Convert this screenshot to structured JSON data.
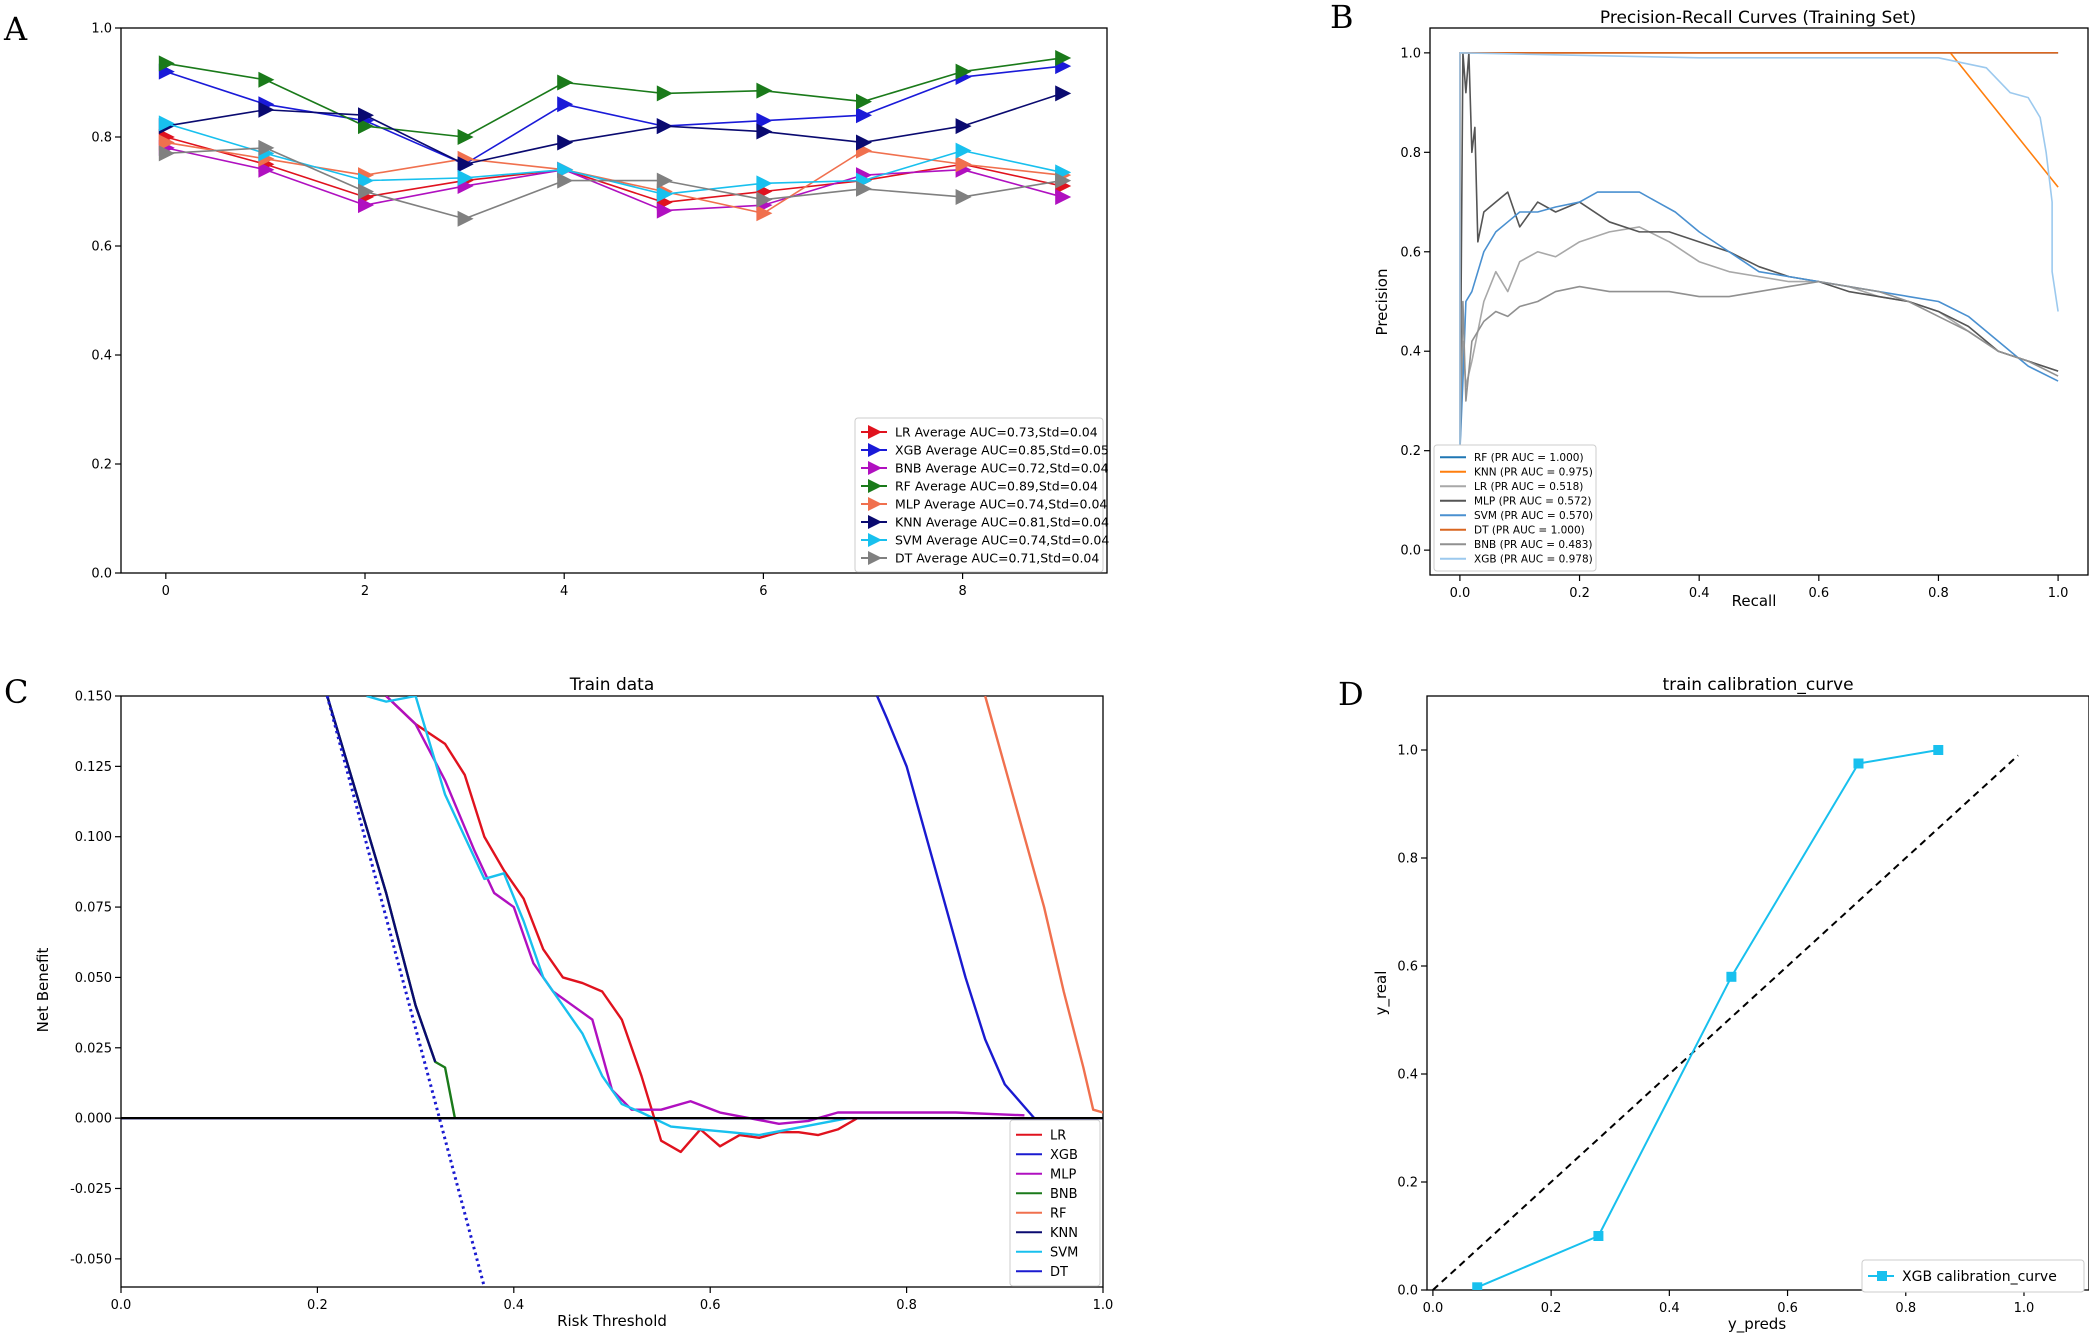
{
  "panel_letters": [
    "A",
    "B",
    "C",
    "D"
  ],
  "chart_data": [
    {
      "id": "A",
      "type": "line",
      "title": "",
      "xlabel": "",
      "ylabel": "",
      "xlim": [
        -0.45,
        9.45
      ],
      "ylim": [
        0.0,
        1.0
      ],
      "xticks": [
        0,
        2,
        4,
        6,
        8
      ],
      "yticks": [
        0.0,
        0.2,
        0.4,
        0.6,
        0.8,
        1.0
      ],
      "xtick_labels": [
        "0",
        "2",
        "4",
        "6",
        "8"
      ],
      "ytick_labels": [
        "0.0",
        "0.2",
        "0.4",
        "0.6",
        "0.8",
        "1.0"
      ],
      "x": [
        0,
        1,
        2,
        3,
        4,
        5,
        6,
        7,
        8,
        9
      ],
      "legend_position": "lower right",
      "series": [
        {
          "name": "LR",
          "label": "LR Average AUC=0.73,Std=0.04",
          "color": "#e0121e",
          "values": [
            0.8,
            0.75,
            0.69,
            0.72,
            0.74,
            0.68,
            0.7,
            0.72,
            0.75,
            0.71
          ]
        },
        {
          "name": "XGB",
          "label": "XGB Average AUC=0.85,Std=0.05",
          "color": "#1a1ad8",
          "values": [
            0.92,
            0.86,
            0.83,
            0.75,
            0.86,
            0.82,
            0.83,
            0.84,
            0.91,
            0.93
          ]
        },
        {
          "name": "BNB",
          "label": "BNB Average AUC=0.72,Std=0.04",
          "color": "#b010c0",
          "values": [
            0.78,
            0.74,
            0.675,
            0.71,
            0.74,
            0.665,
            0.675,
            0.73,
            0.74,
            0.69
          ]
        },
        {
          "name": "RF",
          "label": "RF Average AUC=0.89,Std=0.04",
          "color": "#1a7a1a",
          "values": [
            0.935,
            0.905,
            0.82,
            0.8,
            0.9,
            0.88,
            0.885,
            0.865,
            0.92,
            0.945
          ]
        },
        {
          "name": "MLP",
          "label": "MLP Average AUC=0.74,Std=0.04",
          "color": "#f0704e",
          "values": [
            0.79,
            0.76,
            0.73,
            0.76,
            0.74,
            0.7,
            0.66,
            0.775,
            0.75,
            0.73
          ]
        },
        {
          "name": "KNN",
          "label": "KNN Average AUC=0.81,Std=0.04",
          "color": "#0a0a70",
          "values": [
            0.82,
            0.85,
            0.84,
            0.75,
            0.79,
            0.82,
            0.81,
            0.79,
            0.82,
            0.88
          ]
        },
        {
          "name": "SVM",
          "label": "SVM Average AUC=0.74,Std=0.04",
          "color": "#18c0ee",
          "values": [
            0.825,
            0.77,
            0.72,
            0.725,
            0.74,
            0.695,
            0.715,
            0.72,
            0.775,
            0.735
          ]
        },
        {
          "name": "DT",
          "label": "DT Average AUC=0.71,Std=0.04",
          "color": "#808080",
          "values": [
            0.77,
            0.78,
            0.7,
            0.65,
            0.72,
            0.72,
            0.685,
            0.705,
            0.69,
            0.72
          ]
        }
      ]
    },
    {
      "id": "B",
      "type": "line",
      "title": "Precision-Recall Curves (Training Set)",
      "xlabel": "Recall",
      "ylabel": "Precision",
      "xlim": [
        -0.05,
        1.05
      ],
      "ylim": [
        -0.05,
        1.05
      ],
      "xticks": [
        0.0,
        0.2,
        0.4,
        0.6,
        0.8,
        1.0
      ],
      "yticks": [
        0.0,
        0.2,
        0.4,
        0.6,
        0.8,
        1.0
      ],
      "xtick_labels": [
        "0.0",
        "0.2",
        "0.4",
        "0.6",
        "0.8",
        "1.0"
      ],
      "ytick_labels": [
        "0.0",
        "0.2",
        "0.4",
        "0.6",
        "0.8",
        "1.0"
      ],
      "legend_position": "lower left",
      "series": [
        {
          "name": "RF",
          "label": "RF (PR AUC = 1.000)",
          "color": "#1f77b4",
          "x": [
            0.0,
            0.0,
            1.0
          ],
          "y": [
            0.2,
            1.0,
            1.0
          ]
        },
        {
          "name": "KNN",
          "label": "KNN (PR AUC = 0.975)",
          "color": "#ff7f0e",
          "x": [
            0.0,
            0.0,
            0.82,
            1.0
          ],
          "y": [
            0.2,
            1.0,
            1.0,
            0.73
          ]
        },
        {
          "name": "LR",
          "label": "LR (PR AUC = 0.518)",
          "color": "#a8a8a8",
          "x": [
            0.0,
            0.005,
            0.01,
            0.02,
            0.04,
            0.06,
            0.08,
            0.1,
            0.13,
            0.16,
            0.2,
            0.25,
            0.3,
            0.35,
            0.4,
            0.45,
            0.5,
            0.55,
            0.6,
            0.65,
            0.7,
            0.75,
            0.8,
            0.85,
            0.9,
            0.95,
            1.0
          ],
          "y": [
            0.2,
            0.42,
            0.33,
            0.38,
            0.5,
            0.56,
            0.52,
            0.58,
            0.6,
            0.59,
            0.62,
            0.64,
            0.65,
            0.62,
            0.58,
            0.56,
            0.55,
            0.54,
            0.54,
            0.53,
            0.51,
            0.5,
            0.48,
            0.44,
            0.4,
            0.38,
            0.36
          ]
        },
        {
          "name": "MLP",
          "label": "MLP (PR AUC = 0.572)",
          "color": "#555555",
          "x": [
            0.0,
            0.005,
            0.01,
            0.015,
            0.02,
            0.025,
            0.03,
            0.04,
            0.06,
            0.08,
            0.1,
            0.13,
            0.16,
            0.2,
            0.25,
            0.3,
            0.35,
            0.4,
            0.45,
            0.5,
            0.55,
            0.6,
            0.65,
            0.7,
            0.75,
            0.8,
            0.85,
            0.9,
            0.95,
            1.0
          ],
          "y": [
            0.2,
            1.0,
            0.92,
            1.0,
            0.8,
            0.85,
            0.62,
            0.68,
            0.7,
            0.72,
            0.65,
            0.7,
            0.68,
            0.7,
            0.66,
            0.64,
            0.64,
            0.62,
            0.6,
            0.57,
            0.55,
            0.54,
            0.52,
            0.51,
            0.5,
            0.48,
            0.45,
            0.4,
            0.38,
            0.36
          ]
        },
        {
          "name": "SVM",
          "label": "SVM (PR AUC = 0.570)",
          "color": "#4a90d0",
          "x": [
            0.0,
            0.005,
            0.01,
            0.02,
            0.04,
            0.06,
            0.08,
            0.1,
            0.13,
            0.16,
            0.2,
            0.23,
            0.26,
            0.3,
            0.33,
            0.36,
            0.4,
            0.45,
            0.5,
            0.55,
            0.6,
            0.65,
            0.7,
            0.75,
            0.8,
            0.85,
            0.9,
            0.95,
            1.0
          ],
          "y": [
            0.2,
            0.34,
            0.5,
            0.52,
            0.6,
            0.64,
            0.66,
            0.68,
            0.68,
            0.69,
            0.7,
            0.72,
            0.72,
            0.72,
            0.7,
            0.68,
            0.64,
            0.6,
            0.56,
            0.55,
            0.54,
            0.53,
            0.52,
            0.51,
            0.5,
            0.47,
            0.42,
            0.37,
            0.34
          ]
        },
        {
          "name": "DT",
          "label": "DT (PR AUC = 1.000)",
          "color": "#d96620",
          "x": [
            0.0,
            0.0,
            0.42,
            1.0
          ],
          "y": [
            0.2,
            1.0,
            1.0,
            1.0
          ]
        },
        {
          "name": "BNB",
          "label": "BNB (PR AUC = 0.483)",
          "color": "#909090",
          "x": [
            0.0,
            0.005,
            0.01,
            0.02,
            0.04,
            0.06,
            0.08,
            0.1,
            0.13,
            0.16,
            0.2,
            0.25,
            0.3,
            0.35,
            0.4,
            0.45,
            0.5,
            0.55,
            0.6,
            0.65,
            0.7,
            0.75,
            0.8,
            0.85,
            0.9,
            0.95,
            1.0
          ],
          "y": [
            0.2,
            0.5,
            0.3,
            0.42,
            0.46,
            0.48,
            0.47,
            0.49,
            0.5,
            0.52,
            0.53,
            0.52,
            0.52,
            0.52,
            0.51,
            0.51,
            0.52,
            0.53,
            0.54,
            0.53,
            0.52,
            0.5,
            0.47,
            0.44,
            0.4,
            0.38,
            0.35
          ]
        },
        {
          "name": "XGB",
          "label": "XGB (PR AUC = 0.978)",
          "color": "#9cc9ee",
          "x": [
            0.0,
            0.0,
            0.4,
            0.8,
            0.88,
            0.92,
            0.95,
            0.97,
            0.98,
            0.99,
            0.99,
            1.0
          ],
          "y": [
            0.2,
            1.0,
            0.99,
            0.99,
            0.97,
            0.92,
            0.91,
            0.87,
            0.8,
            0.7,
            0.56,
            0.48
          ]
        }
      ]
    },
    {
      "id": "C",
      "type": "line",
      "title": "Train data",
      "xlabel": "Risk Threshold",
      "ylabel": "Net Benefit",
      "xlim": [
        0.0,
        1.0
      ],
      "ylim": [
        -0.06,
        0.15
      ],
      "xticks": [
        0.0,
        0.2,
        0.4,
        0.6,
        0.8,
        1.0
      ],
      "yticks": [
        -0.05,
        -0.025,
        0.0,
        0.025,
        0.05,
        0.075,
        0.1,
        0.125,
        0.15
      ],
      "xtick_labels": [
        "0.0",
        "0.2",
        "0.4",
        "0.6",
        "0.8",
        "1.0"
      ],
      "ytick_labels": [
        "-0.050",
        "-0.025",
        "0.000",
        "0.025",
        "0.050",
        "0.075",
        "0.100",
        "0.125",
        "0.150"
      ],
      "legend_position": "lower right",
      "series": [
        {
          "name": "LR",
          "label": "LR",
          "color": "#e0121e",
          "x": [
            0.27,
            0.3,
            0.33,
            0.35,
            0.37,
            0.39,
            0.41,
            0.43,
            0.45,
            0.47,
            0.49,
            0.51,
            0.53,
            0.55,
            0.57,
            0.59,
            0.61,
            0.63,
            0.65,
            0.67,
            0.69,
            0.71,
            0.73,
            0.75,
            0.77
          ],
          "y": [
            0.15,
            0.14,
            0.133,
            0.122,
            0.1,
            0.088,
            0.078,
            0.06,
            0.05,
            0.048,
            0.045,
            0.035,
            0.015,
            -0.008,
            -0.012,
            -0.004,
            -0.01,
            -0.006,
            -0.007,
            -0.005,
            -0.005,
            -0.006,
            -0.004,
            0.0,
            0.0
          ]
        },
        {
          "name": "XGB",
          "label": "XGB",
          "color": "#1a1ad0",
          "x": [
            0.77,
            0.78,
            0.8,
            0.82,
            0.84,
            0.86,
            0.88,
            0.9,
            0.92,
            0.93
          ],
          "y": [
            0.15,
            0.142,
            0.125,
            0.1,
            0.075,
            0.05,
            0.028,
            0.012,
            0.004,
            0.0
          ]
        },
        {
          "name": "MLP",
          "label": "MLP",
          "color": "#b010c0",
          "x": [
            0.27,
            0.3,
            0.33,
            0.36,
            0.38,
            0.4,
            0.42,
            0.44,
            0.46,
            0.48,
            0.5,
            0.52,
            0.55,
            0.58,
            0.61,
            0.64,
            0.67,
            0.7,
            0.73,
            0.76,
            0.8,
            0.85,
            0.92
          ],
          "y": [
            0.15,
            0.14,
            0.12,
            0.095,
            0.08,
            0.075,
            0.055,
            0.045,
            0.04,
            0.035,
            0.01,
            0.003,
            0.003,
            0.006,
            0.002,
            0.0,
            -0.002,
            -0.001,
            0.002,
            0.002,
            0.002,
            0.002,
            0.001
          ]
        },
        {
          "name": "BNB",
          "label": "BNB",
          "color": "#1a7a1a",
          "x": [
            0.21,
            0.24,
            0.27,
            0.3,
            0.32,
            0.33,
            0.34
          ],
          "y": [
            0.15,
            0.115,
            0.08,
            0.04,
            0.02,
            0.018,
            0.0
          ]
        },
        {
          "name": "RF",
          "label": "RF",
          "color": "#f0704e",
          "x": [
            0.88,
            0.9,
            0.92,
            0.94,
            0.96,
            0.98,
            0.99,
            1.0
          ],
          "y": [
            0.15,
            0.125,
            0.1,
            0.075,
            0.045,
            0.018,
            0.003,
            0.002
          ]
        },
        {
          "name": "KNN",
          "label": "KNN",
          "color": "#0a0a70",
          "x": [
            0.21,
            0.24,
            0.27,
            0.3,
            0.32
          ],
          "y": [
            0.15,
            0.115,
            0.08,
            0.04,
            0.02
          ]
        },
        {
          "name": "SVM",
          "label": "SVM",
          "color": "#18c0ee",
          "x": [
            0.25,
            0.27,
            0.3,
            0.33,
            0.35,
            0.37,
            0.39,
            0.41,
            0.43,
            0.45,
            0.47,
            0.49,
            0.51,
            0.53,
            0.56,
            0.59,
            0.62,
            0.65,
            0.68,
            0.71,
            0.74
          ],
          "y": [
            0.15,
            0.148,
            0.15,
            0.115,
            0.1,
            0.085,
            0.087,
            0.07,
            0.05,
            0.04,
            0.03,
            0.015,
            0.005,
            0.002,
            -0.003,
            -0.004,
            -0.005,
            -0.006,
            -0.004,
            -0.002,
            0.0
          ]
        },
        {
          "name": "DT",
          "label": "DT",
          "color": "#1a1ad0",
          "x": [
            0.0,
            1.0
          ],
          "y": [
            0.0,
            0.0
          ]
        }
      ],
      "extra_lines": [
        {
          "name": "treat-all",
          "color": "#1a1ad0",
          "style": "dotted",
          "x": [
            0.21,
            0.37
          ],
          "y": [
            0.15,
            -0.06
          ]
        },
        {
          "name": "treat-none",
          "color": "#000000",
          "style": "solid",
          "x": [
            0.0,
            1.0
          ],
          "y": [
            0.0,
            0.0
          ]
        }
      ]
    },
    {
      "id": "D",
      "type": "line",
      "title": "train calibration_curve",
      "xlabel": "y_preds",
      "ylabel": "y_real",
      "xlim": [
        -0.01,
        1.11
      ],
      "ylim": [
        0.0,
        1.1
      ],
      "xticks": [
        0.0,
        0.2,
        0.4,
        0.6,
        0.8,
        1.0
      ],
      "yticks": [
        0.0,
        0.2,
        0.4,
        0.6,
        0.8,
        1.0
      ],
      "xtick_labels": [
        "0.0",
        "0.2",
        "0.4",
        "0.6",
        "0.8",
        "1.0"
      ],
      "ytick_labels": [
        "0.0",
        "0.2",
        "0.4",
        "0.6",
        "0.8",
        "1.0"
      ],
      "legend_position": "lower right",
      "series": [
        {
          "name": "XGB",
          "label": "XGB calibration_curve",
          "color": "#18c0ee",
          "marker": "square",
          "x": [
            0.075,
            0.28,
            0.505,
            0.72,
            0.855
          ],
          "y": [
            0.005,
            0.1,
            0.58,
            0.975,
            1.0
          ]
        }
      ],
      "reference_line": {
        "color": "#000000",
        "style": "dashed",
        "x": [
          0.0,
          0.99
        ],
        "y": [
          0.0,
          0.99
        ]
      }
    }
  ]
}
